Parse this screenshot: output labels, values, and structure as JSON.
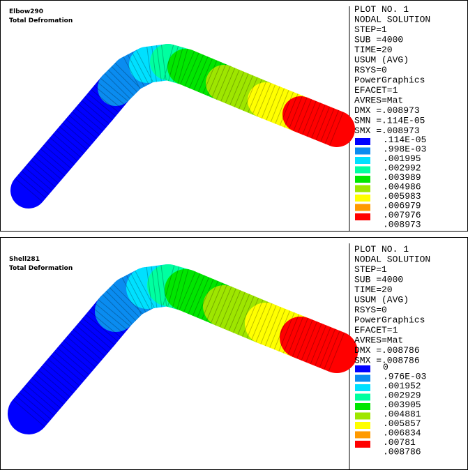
{
  "panels": [
    {
      "title": "Elbow290",
      "subtitle": "Total Defromation",
      "info": [
        "PLOT NO.   1",
        "NODAL SOLUTION",
        "STEP=1",
        "SUB =4000",
        "TIME=20",
        "USUM      (AVG)",
        "RSYS=0",
        "PowerGraphics",
        "EFACET=1",
        "AVRES=Mat",
        "DMX =.008973",
        "SMN =.114E-05",
        "SMX =.008973"
      ],
      "legend": [
        ".114E-05",
        ".998E-03",
        ".001995",
        ".002992",
        ".003989",
        ".004986",
        ".005983",
        ".006979",
        ".007976",
        ".008973"
      ]
    },
    {
      "title": "Shell281",
      "subtitle": "Total Deformation",
      "info": [
        "PLOT NO.   1",
        "NODAL SOLUTION",
        "STEP=1",
        "SUB =4000",
        "TIME=20",
        "USUM      (AVG)",
        "RSYS=0",
        "PowerGraphics",
        "EFACET=1",
        "AVRES=Mat",
        "DMX =.008786",
        "SMX =.008786"
      ],
      "legend": [
        "0",
        ".976E-03",
        ".001952",
        ".002929",
        ".003905",
        ".004881",
        ".005857",
        ".006834",
        ".00781",
        ".008786"
      ]
    }
  ],
  "colors": [
    "#0000ff",
    "#0a8cf0",
    "#00e0ff",
    "#00ffa0",
    "#00e600",
    "#9ee600",
    "#ffff00",
    "#ff9a00",
    "#ff0000"
  ]
}
